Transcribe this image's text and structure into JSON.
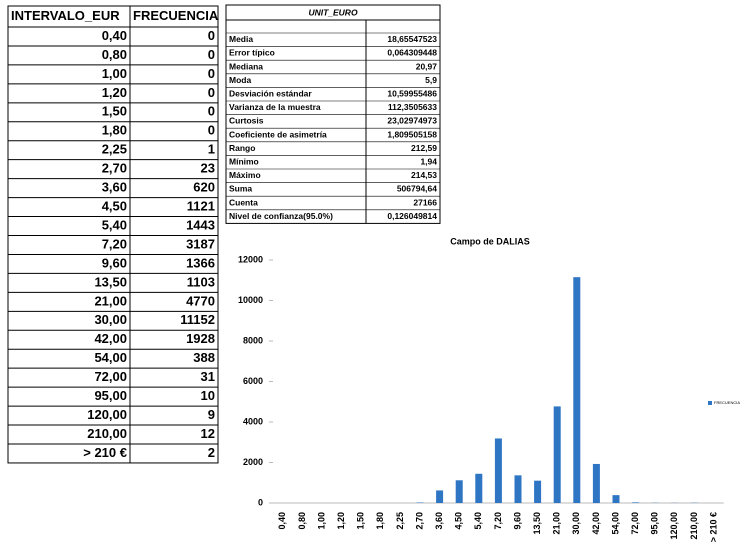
{
  "table": {
    "header": "INTERVALO_EUR"
  },
  "stats": {
    "title": "UNIT_EURO",
    "rows": [
      [
        "Media",
        "18,65547523"
      ],
      [
        "Error típico",
        "0,064309448"
      ],
      [
        "Mediana",
        "20,97"
      ],
      [
        "Moda",
        "5,9"
      ],
      [
        "Desviación estándar",
        "10,59955486"
      ],
      [
        "Varianza de la muestra",
        "112,3505633"
      ],
      [
        "Curtosis",
        "23,02974973"
      ],
      [
        "Coeficiente de asimetría",
        "1,809505158"
      ],
      [
        "Rango",
        "212,59"
      ],
      [
        "Mínimo",
        "1,94"
      ],
      [
        "Máximo",
        "214,53"
      ],
      [
        "Suma",
        "506794,64"
      ],
      [
        "Cuenta",
        "27166"
      ],
      [
        "Nivel de confianza(95.0%)",
        "0,126049814"
      ]
    ]
  },
  "chart_data": {
    "type": "bar",
    "title": "Campo de DALIAS",
    "categories": [
      "0,40",
      "0,80",
      "1,00",
      "1,20",
      "1,50",
      "1,80",
      "2,25",
      "2,70",
      "3,60",
      "4,50",
      "5,40",
      "7,20",
      "9,60",
      "13,50",
      "21,00",
      "30,00",
      "42,00",
      "54,00",
      "72,00",
      "95,00",
      "120,00",
      "210,00",
      "> 210 €"
    ],
    "series": [
      {
        "name": "FRECUENCIA",
        "color": "#2e75c4",
        "values": [
          0,
          0,
          0,
          0,
          0,
          0,
          1,
          23,
          620,
          1121,
          1443,
          3187,
          1366,
          1103,
          4770,
          11152,
          1928,
          388,
          31,
          10,
          9,
          12,
          2
        ]
      }
    ],
    "ylim": [
      0,
      12000
    ],
    "yticks": [
      0,
      2000,
      4000,
      6000,
      8000,
      10000,
      12000
    ],
    "grid": false,
    "legend": "right"
  }
}
